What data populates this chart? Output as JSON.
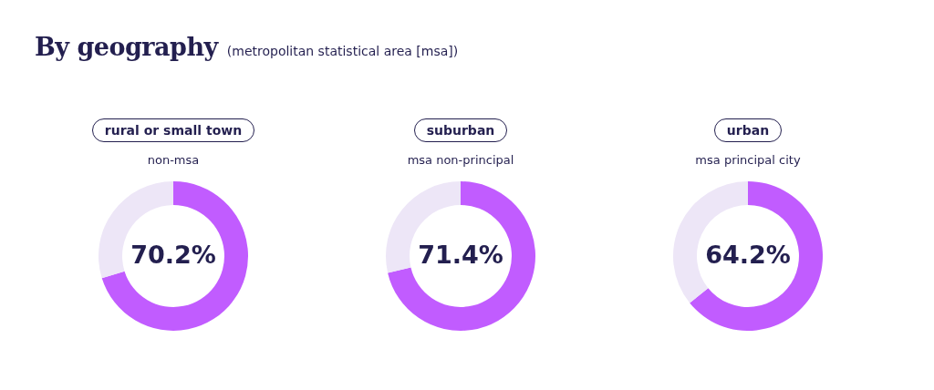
{
  "chart_data": [
    {
      "type": "other",
      "title": "By geography",
      "subtitle": "(metropolitan statistical area [msa])"
    },
    {
      "type": "donut",
      "title": "rural or small town",
      "subtitle": "non-msa",
      "categories": [
        null,
        null
      ],
      "values": [
        70.2,
        29.8
      ],
      "colors": [
        "#c15cff",
        "#ede6f7"
      ],
      "value_labels": [
        "70.2%",
        null
      ]
    },
    {
      "type": "donut",
      "title": "suburban",
      "subtitle": "msa non-principal",
      "categories": [
        null,
        null
      ],
      "values": [
        71.4,
        28.6
      ],
      "colors": [
        "#c15cff",
        "#ede6f7"
      ],
      "value_labels": [
        "71.4%",
        null
      ]
    },
    {
      "type": "donut",
      "title": "urban",
      "subtitle": "msa principal city",
      "categories": [
        null,
        null
      ],
      "values": [
        64.2,
        35.8
      ],
      "colors": [
        "#c15cff",
        "#ede6f7"
      ],
      "value_labels": [
        "64.2%",
        null
      ]
    }
  ]
}
